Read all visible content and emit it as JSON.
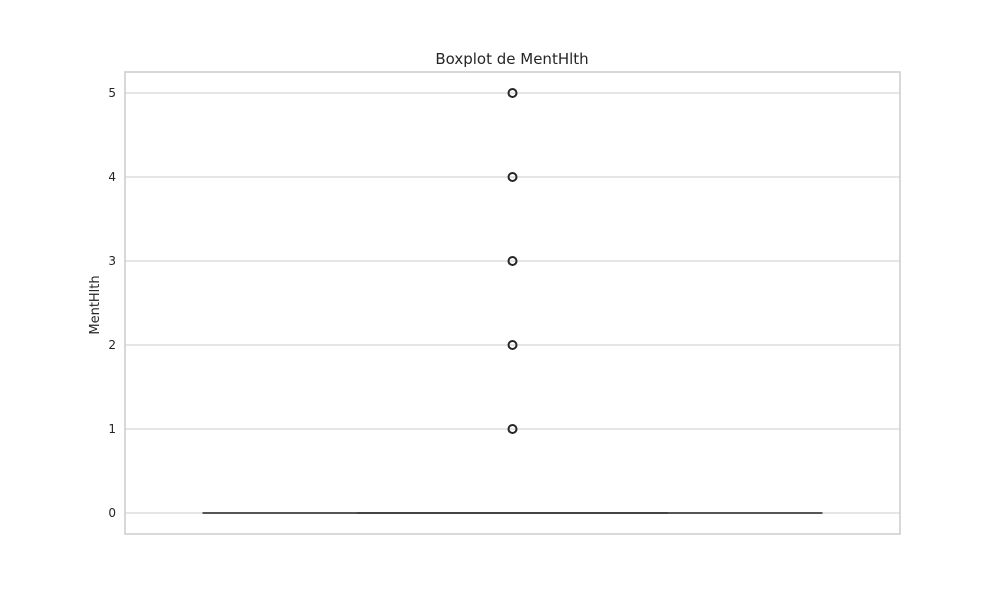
{
  "chart_data": {
    "type": "box",
    "title": "Boxplot de MentHlth",
    "xlabel": "",
    "ylabel": "MentHlth",
    "ylim": [
      -0.25,
      5.25
    ],
    "yticks": [
      0,
      1,
      2,
      3,
      4,
      5
    ],
    "grid": true,
    "box": {
      "min": 0,
      "q1": 0,
      "median": 0,
      "q3": 0,
      "max": 0,
      "outliers": [
        1,
        2,
        3,
        4,
        5
      ]
    },
    "colors": {
      "grid": "#cccccc",
      "frame": "#cccccc",
      "box_line": "#3f3f3f",
      "outlier": "#262626",
      "text": "#262626"
    }
  }
}
